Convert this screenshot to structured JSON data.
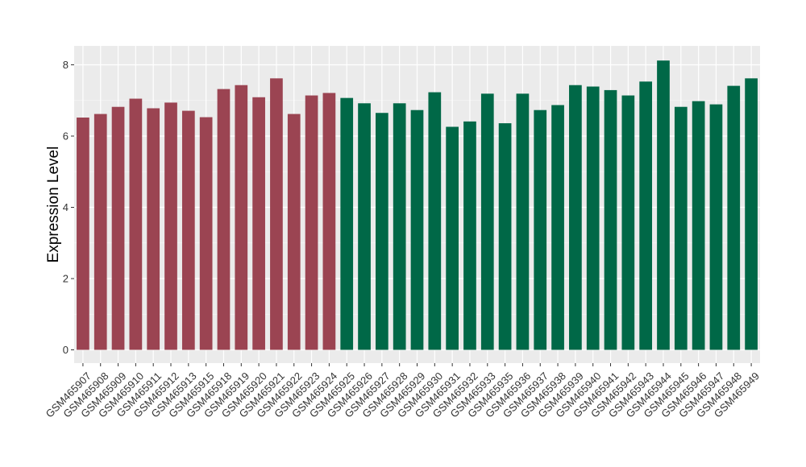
{
  "chart_data": {
    "type": "bar",
    "title": "",
    "xlabel": "",
    "ylabel": "Expression Level",
    "ylim": [
      0,
      8.3
    ],
    "yticks": [
      0,
      2,
      4,
      6,
      8
    ],
    "grid": true,
    "legend": "none",
    "colors": {
      "group_a": "#9b4452",
      "group_b": "#006847",
      "panel_bg": "#ebebeb",
      "grid_major": "#ffffff",
      "tick_text": "#333333"
    },
    "categories": [
      "GSM465907",
      "GSM465908",
      "GSM465909",
      "GSM465910",
      "GSM465911",
      "GSM465912",
      "GSM465913",
      "GSM465915",
      "GSM465918",
      "GSM465919",
      "GSM465920",
      "GSM465921",
      "GSM465922",
      "GSM465923",
      "GSM465924",
      "GSM465925",
      "GSM465926",
      "GSM465927",
      "GSM465928",
      "GSM465929",
      "GSM465930",
      "GSM465931",
      "GSM465932",
      "GSM465933",
      "GSM465935",
      "GSM465936",
      "GSM465937",
      "GSM465938",
      "GSM465939",
      "GSM465940",
      "GSM465941",
      "GSM465942",
      "GSM465943",
      "GSM465944",
      "GSM465945",
      "GSM465946",
      "GSM465947",
      "GSM465948",
      "GSM465949"
    ],
    "values": [
      6.52,
      6.62,
      6.82,
      7.05,
      6.78,
      6.94,
      6.71,
      6.53,
      7.32,
      7.43,
      7.09,
      7.62,
      6.62,
      7.14,
      7.21,
      7.07,
      6.92,
      6.65,
      6.92,
      6.73,
      7.23,
      6.26,
      6.41,
      7.19,
      6.36,
      7.19,
      6.73,
      6.87,
      7.43,
      7.39,
      7.29,
      7.14,
      7.53,
      8.12,
      6.82,
      6.98,
      6.89,
      7.41,
      7.62
    ],
    "groups": [
      "a",
      "a",
      "a",
      "a",
      "a",
      "a",
      "a",
      "a",
      "a",
      "a",
      "a",
      "a",
      "a",
      "a",
      "a",
      "b",
      "b",
      "b",
      "b",
      "b",
      "b",
      "b",
      "b",
      "b",
      "b",
      "b",
      "b",
      "b",
      "b",
      "b",
      "b",
      "b",
      "b",
      "b",
      "b",
      "b",
      "b",
      "b",
      "b"
    ]
  }
}
